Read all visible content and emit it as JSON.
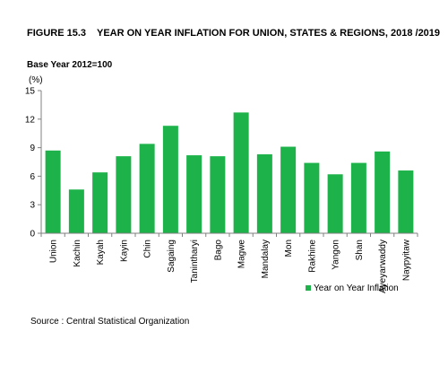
{
  "figure": {
    "number": "FIGURE 15.3",
    "title": "YEAR ON YEAR INFLATION FOR UNION, STATES & REGIONS, 2018 /2019"
  },
  "base_year_note": "Base Year 2012=100",
  "source_note": "Source : Central Statistical Organization",
  "colors": {
    "bar": "#1db34a",
    "axis": "#808080"
  },
  "chart_data": {
    "type": "bar",
    "title": "YEAR ON YEAR INFLATION FOR UNION, STATES & REGIONS, 2018 /2019",
    "ylabel": "(%)",
    "ylim": [
      0,
      15
    ],
    "yticks": [
      0,
      3,
      6,
      9,
      12,
      15
    ],
    "grid": false,
    "legend": "bottom-right",
    "categories": [
      "Union",
      "Kachin",
      "Kayah",
      "Kayin",
      "Chin",
      "Sagaing",
      "Tanintharyi",
      "Bago",
      "Magwe",
      "Mandalay",
      "Mon",
      "Rakhine",
      "Yangon",
      "Shan",
      "Ayeyarwaddy",
      "Naypyitaw"
    ],
    "series": [
      {
        "name": "Year on Year Inflation",
        "values": [
          8.7,
          4.6,
          6.4,
          8.1,
          9.4,
          11.3,
          8.2,
          8.1,
          12.7,
          8.3,
          9.1,
          7.4,
          6.2,
          7.4,
          8.6,
          6.6
        ]
      }
    ]
  }
}
